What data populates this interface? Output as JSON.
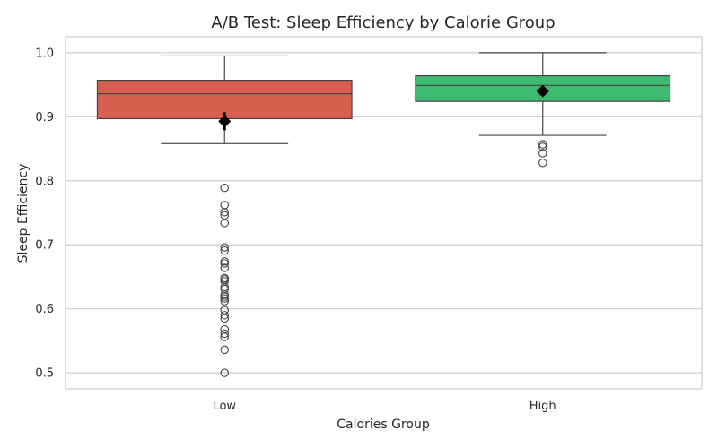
{
  "chart_data": {
    "type": "box",
    "title": "A/B Test: Sleep Efficiency by Calorie Group",
    "xlabel": "Calories Group",
    "ylabel": "Sleep Efficiency",
    "ylim": [
      0.475,
      1.025
    ],
    "yticks": [
      0.5,
      0.6,
      0.7,
      0.8,
      0.9,
      1.0
    ],
    "ytick_labels": [
      "0.5",
      "0.6",
      "0.7",
      "0.8",
      "0.9",
      "1.0"
    ],
    "grid": true,
    "categories": [
      "Low",
      "High"
    ],
    "groups": [
      {
        "category": "Low",
        "color": "#d65f4f",
        "whisker_low": 0.858,
        "q1": 0.897,
        "median": 0.936,
        "q3": 0.957,
        "whisker_high": 0.995,
        "mean": 0.893,
        "mean_ci": [
          0.879,
          0.907
        ],
        "outliers": [
          0.789,
          0.762,
          0.751,
          0.746,
          0.734,
          0.696,
          0.691,
          0.674,
          0.671,
          0.664,
          0.648,
          0.646,
          0.643,
          0.634,
          0.631,
          0.622,
          0.619,
          0.616,
          0.612,
          0.598,
          0.59,
          0.585,
          0.568,
          0.561,
          0.556,
          0.536,
          0.5
        ]
      },
      {
        "category": "High",
        "color": "#3cba70",
        "whisker_low": 0.871,
        "q1": 0.924,
        "median": 0.949,
        "q3": 0.964,
        "whisker_high": 1.0,
        "mean": 0.94,
        "mean_ci": [
          0.936,
          0.944
        ],
        "outliers": [
          0.857,
          0.853,
          0.843,
          0.828
        ]
      }
    ]
  }
}
